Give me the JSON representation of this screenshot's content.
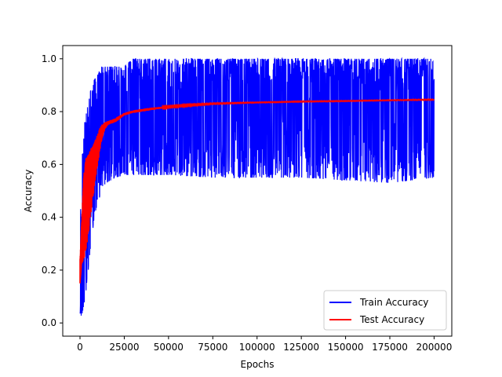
{
  "chart_data": {
    "type": "line",
    "xlabel": "Epochs",
    "ylabel": "Accuracy",
    "xlim": [
      -9750,
      210000
    ],
    "ylim": [
      -0.05,
      1.05
    ],
    "x_ticks": [
      0,
      25000,
      50000,
      75000,
      100000,
      125000,
      150000,
      175000,
      200000
    ],
    "y_ticks": [
      0.0,
      0.2,
      0.4,
      0.6,
      0.8,
      1.0
    ],
    "y_tick_labels": [
      "0.0",
      "0.2",
      "0.4",
      "0.6",
      "0.8",
      "1.0"
    ],
    "grid": false,
    "legend_position": "bottom-right",
    "series": [
      {
        "name": "Train Accuracy",
        "color": "#0000ff",
        "style": "noisy-band",
        "x": [
          0,
          1000,
          2000,
          3000,
          4000,
          5000,
          6000,
          7000,
          8000,
          10000,
          12000,
          15000,
          20000,
          25000,
          30000,
          40000,
          50000,
          75000,
          100000,
          125000,
          150000,
          175000,
          200000
        ],
        "upper": [
          0.4,
          0.6,
          0.72,
          0.78,
          0.81,
          0.84,
          0.88,
          0.9,
          0.92,
          0.94,
          0.97,
          0.97,
          0.97,
          0.97,
          1.0,
          1.0,
          1.0,
          1.0,
          1.0,
          1.0,
          1.0,
          1.0,
          1.0
        ],
        "lower": [
          0.0,
          0.03,
          0.06,
          0.1,
          0.15,
          0.22,
          0.28,
          0.34,
          0.4,
          0.45,
          0.5,
          0.53,
          0.55,
          0.56,
          0.56,
          0.56,
          0.56,
          0.55,
          0.55,
          0.55,
          0.54,
          0.53,
          0.55
        ],
        "mean": [
          0.2,
          0.35,
          0.45,
          0.52,
          0.58,
          0.63,
          0.67,
          0.7,
          0.72,
          0.75,
          0.77,
          0.79,
          0.8,
          0.81,
          0.82,
          0.83,
          0.83,
          0.84,
          0.84,
          0.845,
          0.85,
          0.85,
          0.85
        ]
      },
      {
        "name": "Test Accuracy",
        "color": "#ff0000",
        "style": "line",
        "x": [
          0,
          1000,
          2000,
          3000,
          4000,
          5000,
          6000,
          7000,
          8000,
          9000,
          10000,
          12000,
          14000,
          16000,
          18000,
          20000,
          22000,
          25000,
          30000,
          40000,
          50000,
          60000,
          75000,
          100000,
          125000,
          150000,
          175000,
          200000
        ],
        "y": [
          0.15,
          0.3,
          0.42,
          0.5,
          0.55,
          0.58,
          0.61,
          0.63,
          0.65,
          0.66,
          0.68,
          0.72,
          0.75,
          0.76,
          0.76,
          0.765,
          0.775,
          0.79,
          0.8,
          0.81,
          0.82,
          0.825,
          0.83,
          0.835,
          0.838,
          0.84,
          0.843,
          0.845
        ],
        "band_upper": [
          0.24,
          0.4,
          0.55,
          0.62,
          0.63,
          0.64,
          0.66,
          0.67,
          0.68,
          0.7,
          0.72,
          0.75,
          0.76,
          0.765,
          0.77,
          0.775,
          0.785,
          0.795,
          0.805,
          0.815,
          0.82,
          0.826,
          0.832,
          0.836,
          0.84,
          0.842,
          0.845,
          0.848
        ],
        "band_lower": [
          0.15,
          0.22,
          0.24,
          0.26,
          0.3,
          0.35,
          0.4,
          0.45,
          0.5,
          0.55,
          0.6,
          0.68,
          0.73,
          0.75,
          0.755,
          0.76,
          0.77,
          0.785,
          0.795,
          0.805,
          0.815,
          0.82,
          0.828,
          0.833,
          0.836,
          0.838,
          0.841,
          0.843
        ]
      }
    ]
  }
}
